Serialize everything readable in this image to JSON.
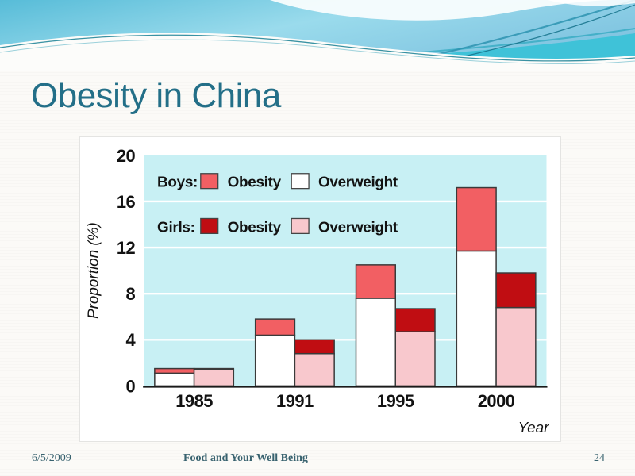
{
  "title": "Obesity in China",
  "footer": {
    "date": "6/5/2009",
    "title": "Food and Your Well Being",
    "page": "24"
  },
  "theme": {
    "title_color": "#236f88",
    "footer_color": "#38626f",
    "plot_bg": "#c8f0f4",
    "grid_color": "#ffffff",
    "axis_color": "#1a1a1a",
    "bar_border": "#3a3a3a",
    "boys_obesity": "#f25f63",
    "boys_overweight": "#ffffff",
    "girls_obesity": "#c00d12",
    "girls_overweight": "#f8c8cd"
  },
  "chart_data": {
    "type": "bar",
    "stacked": true,
    "title": "",
    "xlabel": "Year",
    "ylabel": "Proportion (%)",
    "ylim": [
      0,
      20
    ],
    "yticks": [
      0,
      4,
      8,
      12,
      16,
      20
    ],
    "grid": true,
    "legend_position": "top-left",
    "categories": [
      "1985",
      "1991",
      "1995",
      "2000"
    ],
    "groups": [
      {
        "name": "Boys",
        "segments": [
          {
            "label": "Overweight",
            "color": "#ffffff",
            "values": [
              1.1,
              4.4,
              7.6,
              11.7
            ]
          },
          {
            "label": "Obesity",
            "color": "#f25f63",
            "values": [
              0.4,
              1.4,
              2.9,
              5.5
            ]
          }
        ]
      },
      {
        "name": "Girls",
        "segments": [
          {
            "label": "Overweight",
            "color": "#f8c8cd",
            "values": [
              1.4,
              2.8,
              4.7,
              6.8
            ]
          },
          {
            "label": "Obesity",
            "color": "#c00d12",
            "values": [
              0.1,
              1.2,
              2.0,
              3.0
            ]
          }
        ]
      }
    ],
    "legend": {
      "rows": [
        {
          "label": "Boys:",
          "items": [
            {
              "label": "Obesity",
              "color": "#f25f63"
            },
            {
              "label": "Overweight",
              "color": "#ffffff"
            }
          ]
        },
        {
          "label": "Girls:",
          "items": [
            {
              "label": "Obesity",
              "color": "#c00d12"
            },
            {
              "label": "Overweight",
              "color": "#f8c8cd"
            }
          ]
        }
      ]
    }
  }
}
